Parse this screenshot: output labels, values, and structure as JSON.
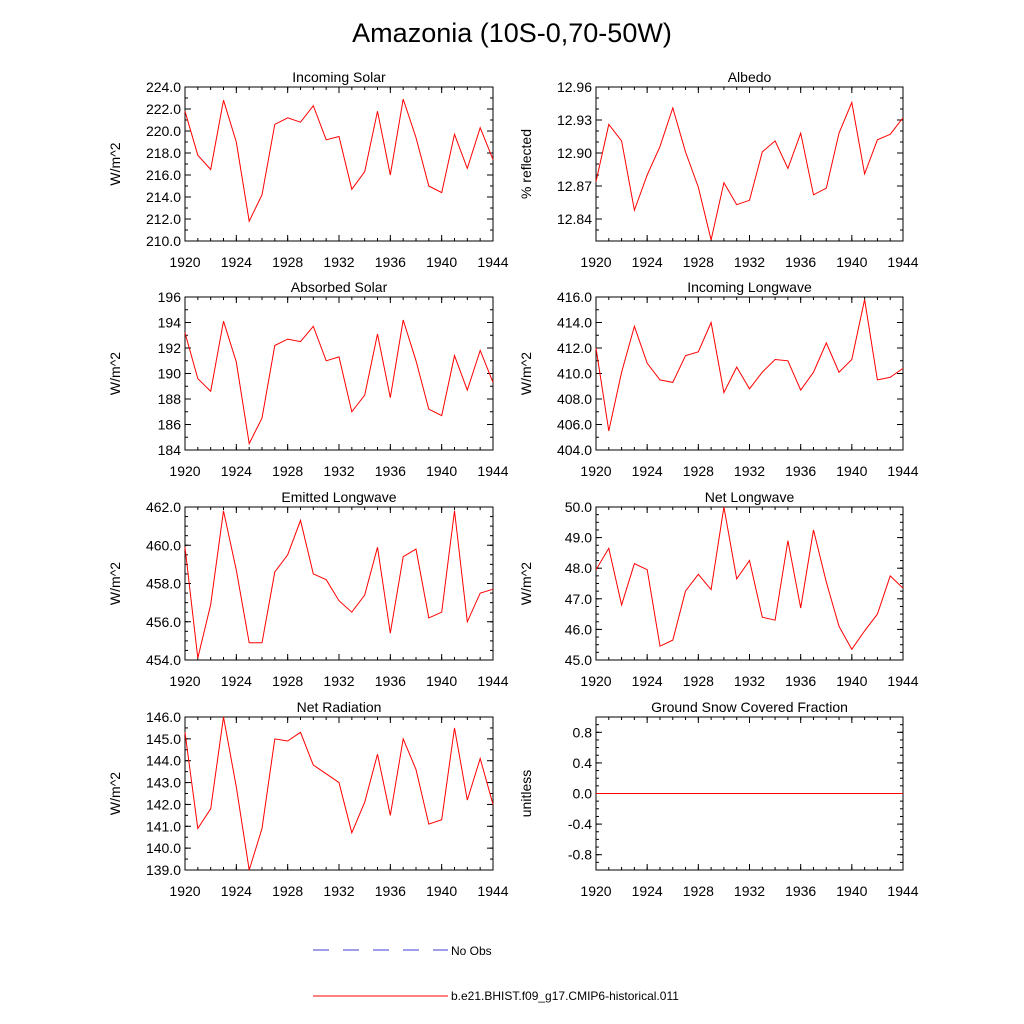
{
  "figure": {
    "title": "Amazonia (10S-0,70-50W)"
  },
  "legend": [
    {
      "label": "No Obs",
      "color": "#3b3bd6",
      "style": "dashed"
    },
    {
      "label": "b.e21.BHIST.f09_g17.CMIP6-historical.011",
      "color": "#ff0000",
      "style": "solid"
    }
  ],
  "chart_data": [
    {
      "type": "line",
      "title": "Incoming Solar",
      "ylabel": "W/m^2",
      "xlim": [
        1920,
        1944
      ],
      "xticks": [
        1920,
        1924,
        1928,
        1932,
        1936,
        1940,
        1944
      ],
      "ylim": [
        210,
        224
      ],
      "yticks": [
        210,
        212,
        214,
        216,
        218,
        220,
        222,
        224
      ],
      "ytick_labels": [
        "210.0",
        "212.0",
        "214.0",
        "216.0",
        "218.0",
        "220.0",
        "222.0",
        "224.0"
      ],
      "yminor": 1,
      "color": "#ff0000",
      "x": [
        1920,
        1921,
        1922,
        1923,
        1924,
        1925,
        1926,
        1927,
        1928,
        1929,
        1930,
        1931,
        1932,
        1933,
        1934,
        1935,
        1936,
        1937,
        1938,
        1939,
        1940,
        1941,
        1942,
        1943,
        1944
      ],
      "y": [
        221.8,
        217.8,
        216.5,
        222.8,
        219.0,
        211.8,
        214.2,
        220.6,
        221.2,
        220.8,
        222.3,
        219.2,
        219.5,
        214.7,
        216.3,
        221.8,
        216.0,
        222.9,
        219.4,
        215.0,
        214.4,
        219.7,
        216.6,
        220.3,
        217.4
      ]
    },
    {
      "type": "line",
      "title": "Albedo",
      "ylabel": "% reflected",
      "xlim": [
        1920,
        1944
      ],
      "xticks": [
        1920,
        1924,
        1928,
        1932,
        1936,
        1940,
        1944
      ],
      "ylim": [
        12.82,
        12.96
      ],
      "yticks": [
        12.84,
        12.87,
        12.9,
        12.93,
        12.96
      ],
      "ytick_labels": [
        "12.84",
        "12.87",
        "12.90",
        "12.93",
        "12.96"
      ],
      "yminor": 0.01,
      "color": "#ff0000",
      "x": [
        1920,
        1921,
        1922,
        1923,
        1924,
        1925,
        1926,
        1927,
        1928,
        1929,
        1930,
        1931,
        1932,
        1933,
        1934,
        1935,
        1936,
        1937,
        1938,
        1939,
        1940,
        1941,
        1942,
        1943,
        1944
      ],
      "y": [
        12.874,
        12.926,
        12.911,
        12.848,
        12.88,
        12.906,
        12.941,
        12.901,
        12.869,
        12.821,
        12.873,
        12.853,
        12.857,
        12.901,
        12.911,
        12.886,
        12.918,
        12.862,
        12.868,
        12.918,
        12.946,
        12.881,
        12.912,
        12.917,
        12.932
      ]
    },
    {
      "type": "line",
      "title": "Absorbed Solar",
      "ylabel": "W/m^2",
      "xlim": [
        1920,
        1944
      ],
      "xticks": [
        1920,
        1924,
        1928,
        1932,
        1936,
        1940,
        1944
      ],
      "ylim": [
        184,
        196
      ],
      "yticks": [
        184,
        186,
        188,
        190,
        192,
        194,
        196
      ],
      "ytick_labels": [
        "184",
        "186",
        "188",
        "190",
        "192",
        "194",
        "196"
      ],
      "yminor": 1,
      "color": "#ff0000",
      "x": [
        1920,
        1921,
        1922,
        1923,
        1924,
        1925,
        1926,
        1927,
        1928,
        1929,
        1930,
        1931,
        1932,
        1933,
        1934,
        1935,
        1936,
        1937,
        1938,
        1939,
        1940,
        1941,
        1942,
        1943,
        1944
      ],
      "y": [
        193.2,
        189.6,
        188.6,
        194.1,
        190.9,
        184.5,
        186.5,
        192.2,
        192.7,
        192.5,
        193.7,
        191.0,
        191.3,
        187.0,
        188.3,
        193.1,
        188.1,
        194.2,
        191.0,
        187.2,
        186.7,
        191.4,
        188.7,
        191.8,
        189.3
      ]
    },
    {
      "type": "line",
      "title": "Incoming Longwave",
      "ylabel": "W/m^2",
      "xlim": [
        1920,
        1944
      ],
      "xticks": [
        1920,
        1924,
        1928,
        1932,
        1936,
        1940,
        1944
      ],
      "ylim": [
        404,
        416
      ],
      "yticks": [
        404,
        406,
        408,
        410,
        412,
        414,
        416
      ],
      "ytick_labels": [
        "404.0",
        "406.0",
        "408.0",
        "410.0",
        "412.0",
        "414.0",
        "416.0"
      ],
      "yminor": 1,
      "color": "#ff0000",
      "x": [
        1920,
        1921,
        1922,
        1923,
        1924,
        1925,
        1926,
        1927,
        1928,
        1929,
        1930,
        1931,
        1932,
        1933,
        1934,
        1935,
        1936,
        1937,
        1938,
        1939,
        1940,
        1941,
        1942,
        1943,
        1944
      ],
      "y": [
        412.0,
        405.5,
        410.1,
        413.7,
        410.8,
        409.5,
        409.3,
        411.4,
        411.7,
        414.0,
        408.5,
        410.5,
        408.8,
        410.1,
        411.1,
        411.0,
        408.7,
        410.1,
        412.4,
        410.1,
        411.1,
        415.8,
        409.5,
        409.7,
        410.4
      ]
    },
    {
      "type": "line",
      "title": "Emitted Longwave",
      "ylabel": "W/m^2",
      "xlim": [
        1920,
        1944
      ],
      "xticks": [
        1920,
        1924,
        1928,
        1932,
        1936,
        1940,
        1944
      ],
      "ylim": [
        454,
        462
      ],
      "yticks": [
        454,
        456,
        458,
        460,
        462
      ],
      "ytick_labels": [
        "454.0",
        "456.0",
        "458.0",
        "460.0",
        "462.0"
      ],
      "yminor": 0.5,
      "color": "#ff0000",
      "x": [
        1920,
        1921,
        1922,
        1923,
        1924,
        1925,
        1926,
        1927,
        1928,
        1929,
        1930,
        1931,
        1932,
        1933,
        1934,
        1935,
        1936,
        1937,
        1938,
        1939,
        1940,
        1941,
        1942,
        1943,
        1944
      ],
      "y": [
        459.9,
        454.1,
        456.9,
        461.8,
        458.7,
        454.9,
        454.9,
        458.6,
        459.5,
        461.3,
        458.5,
        458.2,
        457.1,
        456.5,
        457.4,
        459.9,
        455.4,
        459.4,
        459.8,
        456.2,
        456.5,
        461.8,
        456.0,
        457.5,
        457.7
      ]
    },
    {
      "type": "line",
      "title": "Net Longwave",
      "ylabel": "W/m^2",
      "xlim": [
        1920,
        1944
      ],
      "xticks": [
        1920,
        1924,
        1928,
        1932,
        1936,
        1940,
        1944
      ],
      "ylim": [
        45,
        50
      ],
      "yticks": [
        45,
        46,
        47,
        48,
        49,
        50
      ],
      "ytick_labels": [
        "45.0",
        "46.0",
        "47.0",
        "48.0",
        "49.0",
        "50.0"
      ],
      "yminor": 0.25,
      "color": "#ff0000",
      "x": [
        1920,
        1921,
        1922,
        1923,
        1924,
        1925,
        1926,
        1927,
        1928,
        1929,
        1930,
        1931,
        1932,
        1933,
        1934,
        1935,
        1936,
        1937,
        1938,
        1939,
        1940,
        1941,
        1942,
        1943,
        1944
      ],
      "y": [
        47.95,
        48.65,
        46.8,
        48.15,
        47.95,
        45.45,
        45.65,
        47.25,
        47.8,
        47.3,
        50.0,
        47.65,
        48.25,
        46.4,
        46.3,
        48.9,
        46.7,
        49.25,
        47.55,
        46.1,
        45.35,
        45.95,
        46.5,
        47.75,
        47.35
      ]
    },
    {
      "type": "line",
      "title": "Net Radiation",
      "ylabel": "W/m^2",
      "xlim": [
        1920,
        1944
      ],
      "xticks": [
        1920,
        1924,
        1928,
        1932,
        1936,
        1940,
        1944
      ],
      "ylim": [
        139,
        146
      ],
      "yticks": [
        139,
        140,
        141,
        142,
        143,
        144,
        145,
        146
      ],
      "ytick_labels": [
        "139.0",
        "140.0",
        "141.0",
        "142.0",
        "143.0",
        "144.0",
        "145.0",
        "146.0"
      ],
      "yminor": 0.5,
      "color": "#ff0000",
      "x": [
        1920,
        1921,
        1922,
        1923,
        1924,
        1925,
        1926,
        1927,
        1928,
        1929,
        1930,
        1931,
        1932,
        1933,
        1934,
        1935,
        1936,
        1937,
        1938,
        1939,
        1940,
        1941,
        1942,
        1943,
        1944
      ],
      "y": [
        145.3,
        140.9,
        141.8,
        146.0,
        142.8,
        139.0,
        140.9,
        145.0,
        144.9,
        145.3,
        143.8,
        143.4,
        143.0,
        140.7,
        142.1,
        144.3,
        141.5,
        145.0,
        143.6,
        141.1,
        141.3,
        145.5,
        142.2,
        144.1,
        142.0
      ]
    },
    {
      "type": "line",
      "title": "Ground Snow Covered Fraction",
      "ylabel": "unitless",
      "xlim": [
        1920,
        1944
      ],
      "xticks": [
        1920,
        1924,
        1928,
        1932,
        1936,
        1940,
        1944
      ],
      "ylim": [
        -1.0,
        1.0
      ],
      "yticks": [
        -0.8,
        -0.4,
        0.0,
        0.4,
        0.8
      ],
      "ytick_labels": [
        "-0.8",
        "-0.4",
        "0.0",
        "0.4",
        "0.8"
      ],
      "yminor": 0.1,
      "color": "#ff0000",
      "x": [
        1920,
        1944
      ],
      "y": [
        0.0,
        0.0
      ]
    }
  ]
}
